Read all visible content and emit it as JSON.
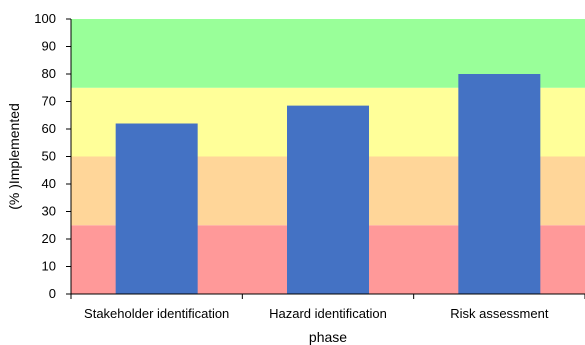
{
  "chart_data": {
    "type": "bar",
    "categories": [
      "Stakeholder identification",
      "Hazard identification",
      "Risk assessment"
    ],
    "values": [
      62,
      68.5,
      80
    ],
    "xlabel": "phase",
    "ylabel": "(% )Implemented",
    "ylim": [
      0,
      100
    ],
    "yticks": [
      0,
      10,
      20,
      30,
      40,
      50,
      60,
      70,
      80,
      90,
      100
    ],
    "bar_color": "#4472C4",
    "bands": [
      {
        "from": 0,
        "to": 25,
        "color": "#FF9999"
      },
      {
        "from": 25,
        "to": 50,
        "color": "#FFD699"
      },
      {
        "from": 50,
        "to": 75,
        "color": "#FFFF99"
      },
      {
        "from": 75,
        "to": 100,
        "color": "#99FF99"
      }
    ],
    "grid": false,
    "legend": "none"
  }
}
